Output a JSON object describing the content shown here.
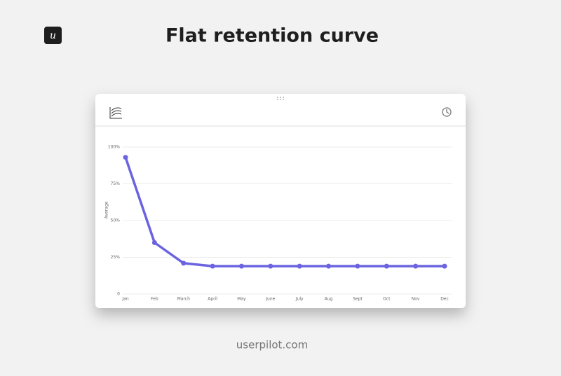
{
  "logo": "u",
  "footer": "userpilot.com",
  "chart_data": {
    "type": "line",
    "title": "Flat retention curve",
    "y_label": "Average",
    "categories": [
      "Jan",
      "Feb",
      "March",
      "April",
      "May",
      "June",
      "July",
      "Aug",
      "Sept",
      "Oct",
      "Nov",
      "Dec"
    ],
    "values": [
      93,
      35,
      21,
      19,
      19,
      19,
      19,
      19,
      19,
      19,
      19,
      19
    ],
    "color": "#6b63e0",
    "ylim": [
      0,
      100
    ],
    "yticks": [
      0,
      {
        "value": 25,
        "label": "25%"
      },
      {
        "value": 50,
        "label": "50%"
      },
      {
        "value": 75,
        "label": "75%"
      },
      {
        "value": 100,
        "label": "100%"
      }
    ],
    "grid": true
  }
}
